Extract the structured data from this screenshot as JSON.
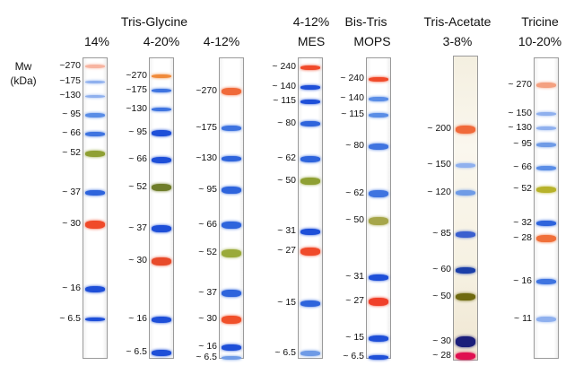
{
  "mw_label": [
    "Mw",
    "(kDa)"
  ],
  "headers": [
    {
      "id": "h-14",
      "text": "14%"
    },
    {
      "id": "h-tg",
      "text": "Tris-Glycine"
    },
    {
      "id": "h-tg1",
      "text": "4-20%"
    },
    {
      "id": "h-tg2",
      "text": "4-12%"
    },
    {
      "id": "h-bt1",
      "text": "4-12%"
    },
    {
      "id": "h-bt2",
      "text": "Bis-Tris"
    },
    {
      "id": "h-mes",
      "text": "MES"
    },
    {
      "id": "h-mops",
      "text": "MOPS"
    },
    {
      "id": "h-ta1",
      "text": "Tris-Acetate"
    },
    {
      "id": "h-ta2",
      "text": "3-8%"
    },
    {
      "id": "h-tr1",
      "text": "Tricine"
    },
    {
      "id": "h-tr2",
      "text": "10-20%"
    }
  ],
  "colors": {
    "blue": "#1e4fd8",
    "light_blue": "#6f9be6",
    "red": "#f04a2a",
    "orange": "#f08a3a",
    "green": "#8fa033",
    "dark": "#1b1e7a"
  },
  "lanes": [
    {
      "name": "lane-tris-glycine-14",
      "bands": [
        {
          "label": "~270",
          "color": "#f7b4a0"
        },
        {
          "label": "~175",
          "color": "#8fb0ee"
        },
        {
          "label": "~130",
          "color": "#8fb0ee"
        },
        {
          "label": "~ 95",
          "color": "#5a8de6"
        },
        {
          "label": "~ 66",
          "color": "#3f74e0"
        },
        {
          "label": "~ 52",
          "color": "#8fa033"
        },
        {
          "label": "~ 37",
          "color": "#2e64dc"
        },
        {
          "label": "~ 30",
          "color": "#f04a2a"
        },
        {
          "label": "~ 16",
          "color": "#1e4fd8"
        },
        {
          "label": "~ 6.5",
          "color": "#1e4fd8"
        }
      ]
    },
    {
      "name": "lane-tris-glycine-4-20",
      "bands": [
        {
          "label": "~270",
          "color": "#f08a3a"
        },
        {
          "label": "~175",
          "color": "#3f74e0"
        },
        {
          "label": "~130",
          "color": "#3f74e0"
        },
        {
          "label": "~ 95",
          "color": "#1e4fd8"
        },
        {
          "label": "~ 66",
          "color": "#1e4fd8"
        },
        {
          "label": "~ 52",
          "color": "#6f7d2a"
        },
        {
          "label": "~ 37",
          "color": "#1e4fd8"
        },
        {
          "label": "~ 30",
          "color": "#e84a2a"
        },
        {
          "label": "~ 16",
          "color": "#1e4fd8"
        },
        {
          "label": "~ 6.5",
          "color": "#1e4fd8"
        }
      ]
    },
    {
      "name": "lane-tris-glycine-4-12",
      "bands": [
        {
          "label": "~270",
          "color": "#f06a3a"
        },
        {
          "label": "~175",
          "color": "#3f74e0"
        },
        {
          "label": "~130",
          "color": "#2e64dc"
        },
        {
          "label": "~ 95",
          "color": "#2e64dc"
        },
        {
          "label": "~ 66",
          "color": "#2e64dc"
        },
        {
          "label": "~ 52",
          "color": "#9aaa3a"
        },
        {
          "label": "~ 37",
          "color": "#2e64dc"
        },
        {
          "label": "~ 30",
          "color": "#f0502a"
        },
        {
          "label": "~ 16",
          "color": "#1e4fd8"
        },
        {
          "label": "~ 6.5",
          "color": "#6f9be6"
        }
      ]
    },
    {
      "name": "lane-bis-tris-mes",
      "bands": [
        {
          "label": "~ 240",
          "color": "#f04a2a"
        },
        {
          "label": "~ 140",
          "color": "#1e4fd8"
        },
        {
          "label": "~ 115",
          "color": "#1e4fd8"
        },
        {
          "label": "~ 80",
          "color": "#2e64dc"
        },
        {
          "label": "~ 62",
          "color": "#2e64dc"
        },
        {
          "label": "~ 50",
          "color": "#8fa033"
        },
        {
          "label": "~ 31",
          "color": "#1e4fd8"
        },
        {
          "label": "~ 27",
          "color": "#f04a2a"
        },
        {
          "label": "~ 15",
          "color": "#2e64dc"
        },
        {
          "label": "~ 6.5",
          "color": "#6f9be6"
        }
      ]
    },
    {
      "name": "lane-bis-tris-mops",
      "bands": [
        {
          "label": "~ 240",
          "color": "#f04a2a"
        },
        {
          "label": "~ 140",
          "color": "#5a8de6"
        },
        {
          "label": "~ 115",
          "color": "#5a8de6"
        },
        {
          "label": "~ 80",
          "color": "#3f74e0"
        },
        {
          "label": "~ 62",
          "color": "#3f74e0"
        },
        {
          "label": "~ 50",
          "color": "#a6a64a"
        },
        {
          "label": "~ 31",
          "color": "#1e4fd8"
        },
        {
          "label": "~ 27",
          "color": "#f0402a"
        },
        {
          "label": "~ 15",
          "color": "#1e4fd8"
        },
        {
          "label": "~ 6.5",
          "color": "#1e4fd8"
        }
      ]
    },
    {
      "name": "lane-tris-acetate",
      "bands": [
        {
          "label": "~ 200",
          "color": "#f06a3a"
        },
        {
          "label": "~ 150",
          "color": "#8fb0ee"
        },
        {
          "label": "~ 120",
          "color": "#6f9be6"
        },
        {
          "label": "~ 85",
          "color": "#3a5fcf"
        },
        {
          "label": "~ 60",
          "color": "#1b3fa8"
        },
        {
          "label": "~ 50",
          "color": "#6f6a10"
        },
        {
          "label": "~ 30",
          "color": "#1b1e7a"
        },
        {
          "label": "~ 28",
          "color": "#e01050"
        }
      ]
    },
    {
      "name": "lane-tricine",
      "bands": [
        {
          "label": "~ 270",
          "color": "#f4a080"
        },
        {
          "label": "~ 150",
          "color": "#8fb0ee"
        },
        {
          "label": "~ 130",
          "color": "#8fb0ee"
        },
        {
          "label": "~ 95",
          "color": "#6f9be6"
        },
        {
          "label": "~ 66",
          "color": "#5a8de6"
        },
        {
          "label": "~ 52",
          "color": "#b7b22a"
        },
        {
          "label": "~ 32",
          "color": "#2e64dc"
        },
        {
          "label": "~ 28",
          "color": "#f0703a"
        },
        {
          "label": "~ 16",
          "color": "#3f74e0"
        },
        {
          "label": "~ 11",
          "color": "#8fb0ee"
        }
      ]
    }
  ]
}
